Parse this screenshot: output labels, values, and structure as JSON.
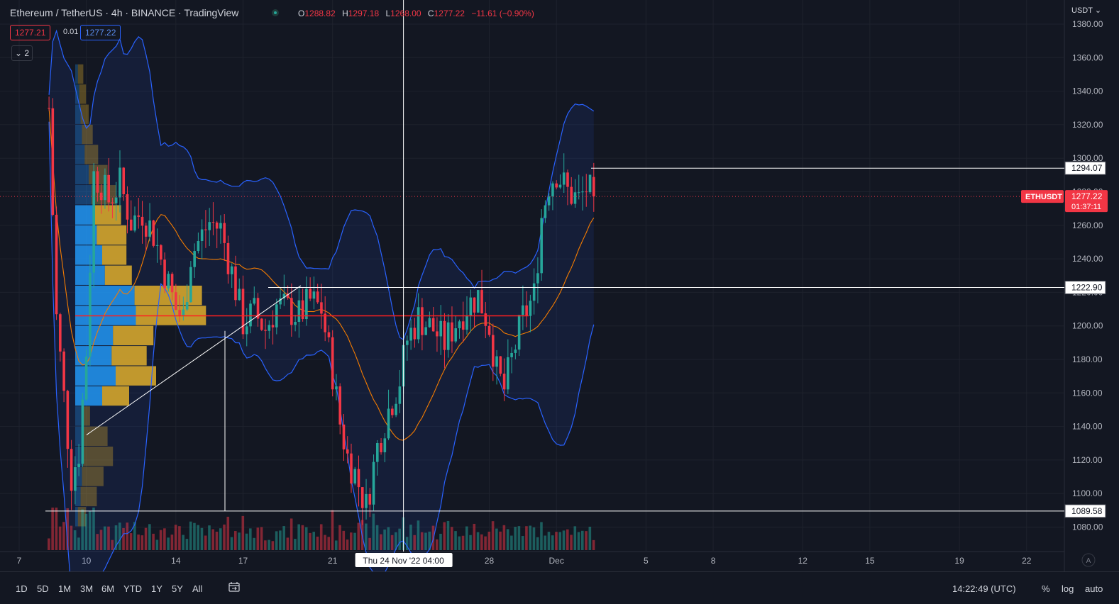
{
  "header": {
    "title": "Ethereum / TetherUS · 4h · BINANCE · TradingView",
    "ohlc": [
      {
        "k": "O",
        "v": "1288.82"
      },
      {
        "k": "H",
        "v": "1297.18"
      },
      {
        "k": "L",
        "v": "1268.00"
      },
      {
        "k": "C",
        "v": "1277.22"
      }
    ],
    "change": "−11.61 (−0.90%)",
    "bid": "1277.21",
    "spread": "0.01",
    "ask": "1277.22",
    "collapse": "2",
    "currency": "USDT"
  },
  "colors": {
    "background": "#131722",
    "up": "#26a69a",
    "down": "#f23645",
    "bollinger": "#2962ff",
    "ma": "#f57c00",
    "vp_up": "#2196f3",
    "vp_down": "#d4a52c"
  },
  "toolbar": {
    "ranges": [
      "1D",
      "5D",
      "1M",
      "3M",
      "6M",
      "YTD",
      "1Y",
      "5Y",
      "All"
    ],
    "time": "14:22:49 (UTC)",
    "percent": "%",
    "log": "log",
    "auto": "auto",
    "auto_scale_badge": "A"
  },
  "chart_data": {
    "type": "candlestick",
    "yticks": [
      "1380.00",
      "1360.00",
      "1340.00",
      "1320.00",
      "1300.00",
      "1280.00",
      "1260.00",
      "1240.00",
      "1220.00",
      "1200.00",
      "1180.00",
      "1160.00",
      "1140.00",
      "1120.00",
      "1100.00",
      "1080.00"
    ],
    "xticks": [
      {
        "label": "7",
        "date": "2022-11-07"
      },
      {
        "label": "10",
        "date": "2022-11-10"
      },
      {
        "label": "14",
        "date": "2022-11-14"
      },
      {
        "label": "17",
        "date": "2022-11-17"
      },
      {
        "label": "21",
        "date": "2022-11-21"
      },
      {
        "label": "28",
        "date": "2022-11-28"
      },
      {
        "label": "Dec",
        "date": "2022-12-01"
      },
      {
        "label": "5",
        "date": "2022-12-05"
      },
      {
        "label": "8",
        "date": "2022-12-08"
      },
      {
        "label": "12",
        "date": "2022-12-12"
      },
      {
        "label": "15",
        "date": "2022-12-15"
      },
      {
        "label": "19",
        "date": "2022-12-19"
      },
      {
        "label": "22",
        "date": "2022-12-22"
      }
    ],
    "crosshair": {
      "label": "Thu 24 Nov '22   04:00",
      "date": "2022-11-24 04:00"
    },
    "symbol_label": "ETHUSDT",
    "last_price": "1277.22",
    "countdown": "01:37:11",
    "levels": [
      "1294.07",
      "1222.90",
      "1089.58"
    ],
    "close_path": [
      [
        "2022-11-08 08:00",
        1330
      ],
      [
        "2022-11-08 16:00",
        1205
      ],
      [
        "2022-11-09 08:00",
        1110
      ],
      [
        "2022-11-09 16:00",
        1125
      ],
      [
        "2022-11-10 00:00",
        1185
      ],
      [
        "2022-11-10 08:00",
        1290
      ],
      [
        "2022-11-10 16:00",
        1285
      ],
      [
        "2022-11-11 00:00",
        1275
      ],
      [
        "2022-11-11 12:00",
        1285
      ],
      [
        "2022-11-12 00:00",
        1262
      ],
      [
        "2022-11-12 12:00",
        1268
      ],
      [
        "2022-11-13 00:00",
        1255
      ],
      [
        "2022-11-13 12:00",
        1232
      ],
      [
        "2022-11-14 00:00",
        1210
      ],
      [
        "2022-11-14 08:00",
        1205
      ],
      [
        "2022-11-14 16:00",
        1242
      ],
      [
        "2022-11-15 00:00",
        1250
      ],
      [
        "2022-11-15 12:00",
        1262
      ],
      [
        "2022-11-16 00:00",
        1258
      ],
      [
        "2022-11-16 12:00",
        1232
      ],
      [
        "2022-11-17 00:00",
        1202
      ],
      [
        "2022-11-17 12:00",
        1208
      ],
      [
        "2022-11-18 00:00",
        1198
      ],
      [
        "2022-11-18 12:00",
        1212
      ],
      [
        "2022-11-19 00:00",
        1210
      ],
      [
        "2022-11-19 12:00",
        1206
      ],
      [
        "2022-11-20 00:00",
        1215
      ],
      [
        "2022-11-20 12:00",
        1210
      ],
      [
        "2022-11-21 00:00",
        1172
      ],
      [
        "2022-11-21 08:00",
        1142
      ],
      [
        "2022-11-21 16:00",
        1122
      ],
      [
        "2022-11-22 00:00",
        1112
      ],
      [
        "2022-11-22 12:00",
        1092
      ],
      [
        "2022-11-23 00:00",
        1128
      ],
      [
        "2022-11-23 12:00",
        1150
      ],
      [
        "2022-11-24 00:00",
        1168
      ],
      [
        "2022-11-24 08:00",
        1192
      ],
      [
        "2022-11-24 20:00",
        1205
      ],
      [
        "2022-11-25 12:00",
        1198
      ],
      [
        "2022-11-26 00:00",
        1190
      ],
      [
        "2022-11-26 12:00",
        1202
      ],
      [
        "2022-11-27 00:00",
        1212
      ],
      [
        "2022-11-27 12:00",
        1218
      ],
      [
        "2022-11-28 00:00",
        1200
      ],
      [
        "2022-11-28 08:00",
        1172
      ],
      [
        "2022-11-28 16:00",
        1162
      ],
      [
        "2022-11-29 00:00",
        1180
      ],
      [
        "2022-11-29 12:00",
        1205
      ],
      [
        "2022-11-30 00:00",
        1218
      ],
      [
        "2022-11-30 08:00",
        1265
      ],
      [
        "2022-11-30 16:00",
        1285
      ],
      [
        "2022-12-01 00:00",
        1292
      ],
      [
        "2022-12-01 12:00",
        1280
      ],
      [
        "2022-12-02 00:00",
        1275
      ],
      [
        "2022-12-02 08:00",
        1282
      ],
      [
        "2022-12-02 16:00",
        1277.22
      ]
    ],
    "volume_profile": [
      {
        "price": 1350,
        "up": 2,
        "down": 4
      },
      {
        "price": 1338,
        "up": 3,
        "down": 5
      },
      {
        "price": 1326,
        "up": 4,
        "down": 6
      },
      {
        "price": 1314,
        "up": 5,
        "down": 8
      },
      {
        "price": 1302,
        "up": 7,
        "down": 10
      },
      {
        "price": 1290,
        "up": 10,
        "down": 14
      },
      {
        "price": 1278,
        "up": 12,
        "down": 18
      },
      {
        "price": 1266,
        "up": 14,
        "down": 20
      },
      {
        "price": 1254,
        "up": 16,
        "down": 22
      },
      {
        "price": 1242,
        "up": 20,
        "down": 18
      },
      {
        "price": 1230,
        "up": 22,
        "down": 20
      },
      {
        "price": 1218,
        "up": 44,
        "down": 50
      },
      {
        "price": 1206,
        "up": 45,
        "down": 52
      },
      {
        "price": 1194,
        "up": 28,
        "down": 30
      },
      {
        "price": 1182,
        "up": 27,
        "down": 26
      },
      {
        "price": 1170,
        "up": 30,
        "down": 30
      },
      {
        "price": 1158,
        "up": 20,
        "down": 20
      },
      {
        "price": 1146,
        "up": 5,
        "down": 6
      },
      {
        "price": 1134,
        "up": 6,
        "down": 18
      },
      {
        "price": 1122,
        "up": 6,
        "down": 22
      },
      {
        "price": 1110,
        "up": 5,
        "down": 16
      },
      {
        "price": 1098,
        "up": 4,
        "down": 12
      },
      {
        "price": 1086,
        "up": 2,
        "down": 6
      }
    ],
    "value_area_poc": 1206
  }
}
